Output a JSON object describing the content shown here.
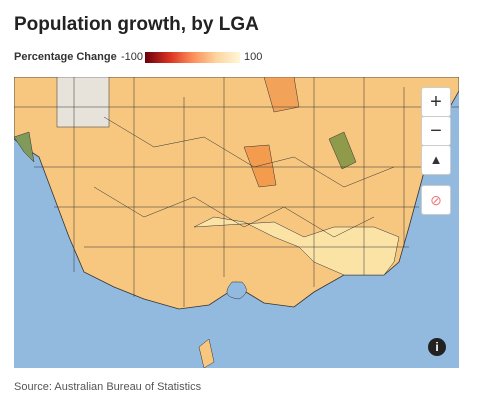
{
  "header": {
    "title": "Population growth, by LGA"
  },
  "legend": {
    "label": "Percentage Change",
    "min": -100,
    "max": 100,
    "colors": [
      "#67000d",
      "#d7301f",
      "#fc8d59",
      "#fdd49e",
      "#fff7d6"
    ]
  },
  "footer": {
    "source": "Source: Australian Bureau of Statistics"
  }
}
